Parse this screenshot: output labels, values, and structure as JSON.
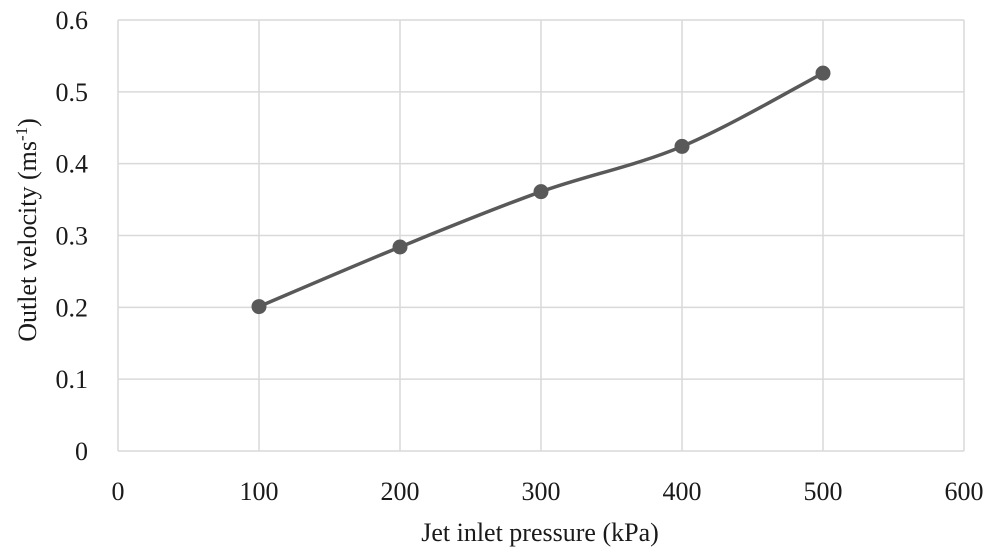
{
  "chart_data": {
    "type": "line",
    "title": "",
    "xlabel": "Jet inlet pressure (kPa)",
    "ylabel_main": "Outlet velocity (ms",
    "ylabel_sup": "-1",
    "ylabel_close": ")",
    "xlim": [
      0,
      600
    ],
    "ylim": [
      0,
      0.6
    ],
    "x_ticks": [
      0,
      100,
      200,
      300,
      400,
      500,
      600
    ],
    "x_tick_labels": [
      "0",
      "100",
      "200",
      "300",
      "400",
      "500",
      "600"
    ],
    "y_ticks": [
      0,
      0.1,
      0.2,
      0.3,
      0.4,
      0.5,
      0.6
    ],
    "y_tick_labels": [
      "0",
      "0.1",
      "0.2",
      "0.3",
      "0.4",
      "0.5",
      "0.6"
    ],
    "grid": true,
    "legend": "none",
    "series": [
      {
        "x": [
          100,
          200,
          300,
          400,
          500
        ],
        "y": [
          0.201,
          0.284,
          0.361,
          0.424,
          0.526
        ],
        "color": "#595959",
        "marker": "circle",
        "smooth": true
      }
    ],
    "grid_color": "#d9d9d9"
  }
}
